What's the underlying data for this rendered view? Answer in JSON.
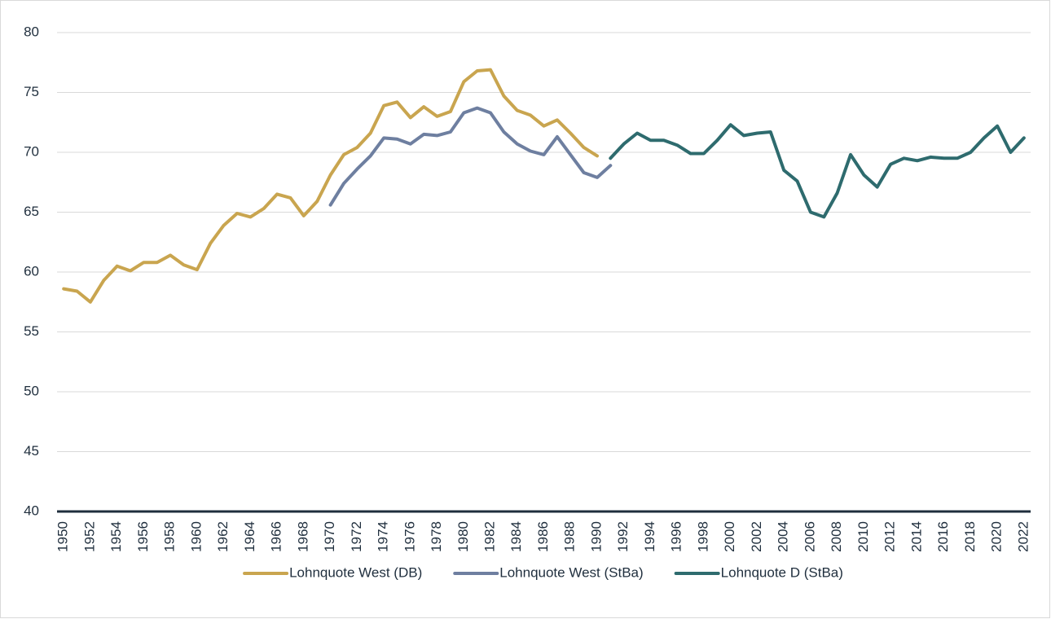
{
  "chart_data": {
    "type": "line",
    "categories": [
      "1950",
      null,
      "1952",
      null,
      "1954",
      null,
      "1956",
      null,
      "1958",
      null,
      "1960",
      null,
      "1962",
      null,
      "1964",
      null,
      "1966",
      null,
      "1968",
      null,
      "1970",
      null,
      "1972",
      null,
      "1974",
      null,
      "1976",
      null,
      "1978",
      null,
      "1980",
      null,
      "1982",
      null,
      "1984",
      null,
      "1986",
      null,
      "1988",
      null,
      "1990",
      null,
      "1992",
      null,
      "1994",
      null,
      "1996",
      null,
      "1998",
      null,
      "2000",
      null,
      "2002",
      null,
      "2004",
      null,
      "2006",
      null,
      "2008",
      null,
      "2010",
      null,
      "2012",
      null,
      "2014",
      null,
      "2016",
      null,
      "2018",
      null,
      "2020",
      null,
      "2022"
    ],
    "series": [
      {
        "name": "Lohnquote West (DB)",
        "color": "#c9a54f",
        "values": [
          58.6,
          58.4,
          57.5,
          59.3,
          60.5,
          60.1,
          60.8,
          60.8,
          61.4,
          60.6,
          60.2,
          62.4,
          63.9,
          64.9,
          64.6,
          65.3,
          66.5,
          66.2,
          64.7,
          65.9,
          68.1,
          69.8,
          70.4,
          71.6,
          73.9,
          74.2,
          72.9,
          73.8,
          73.0,
          73.4,
          75.9,
          76.8,
          76.9,
          74.7,
          73.5,
          73.1,
          72.2,
          72.7,
          71.6,
          70.4,
          69.7,
          null,
          null,
          null,
          null,
          null,
          null,
          null,
          null,
          null,
          null,
          null,
          null,
          null,
          null,
          null,
          null,
          null,
          null,
          null,
          null,
          null,
          null,
          null,
          null,
          null,
          null,
          null,
          null,
          null,
          null,
          null,
          null
        ]
      },
      {
        "name": "Lohnquote West (StBa)",
        "color": "#6e7fa0",
        "values": [
          null,
          null,
          null,
          null,
          null,
          null,
          null,
          null,
          null,
          null,
          null,
          null,
          null,
          null,
          null,
          null,
          null,
          null,
          null,
          null,
          65.6,
          67.4,
          68.6,
          69.7,
          71.2,
          71.1,
          70.7,
          71.5,
          71.4,
          71.7,
          73.3,
          73.7,
          73.3,
          71.7,
          70.7,
          70.1,
          69.8,
          71.3,
          69.8,
          68.3,
          67.9,
          68.9,
          null,
          null,
          null,
          null,
          null,
          null,
          null,
          null,
          null,
          null,
          null,
          null,
          null,
          null,
          null,
          null,
          null,
          null,
          null,
          null,
          null,
          null,
          null,
          null,
          null,
          null,
          null,
          null,
          null,
          null,
          null
        ]
      },
      {
        "name": "Lohnquote D (StBa)",
        "color": "#2e6b6e",
        "values": [
          null,
          null,
          null,
          null,
          null,
          null,
          null,
          null,
          null,
          null,
          null,
          null,
          null,
          null,
          null,
          null,
          null,
          null,
          null,
          null,
          null,
          null,
          null,
          null,
          null,
          null,
          null,
          null,
          null,
          null,
          null,
          null,
          null,
          null,
          null,
          null,
          null,
          null,
          null,
          null,
          null,
          69.5,
          70.7,
          71.6,
          71.0,
          71.0,
          70.6,
          69.9,
          69.9,
          71.0,
          72.3,
          71.4,
          71.6,
          71.7,
          68.5,
          67.6,
          65.0,
          64.6,
          66.6,
          69.8,
          68.1,
          67.1,
          69.0,
          69.5,
          69.3,
          69.6,
          69.5,
          69.5,
          70.0,
          71.2,
          72.2,
          70.0,
          71.2
        ]
      }
    ],
    "ylim": [
      40,
      80
    ],
    "yticks": [
      40,
      45,
      50,
      55,
      60,
      65,
      70,
      75,
      80
    ],
    "grid": true,
    "legend": "bottom"
  }
}
